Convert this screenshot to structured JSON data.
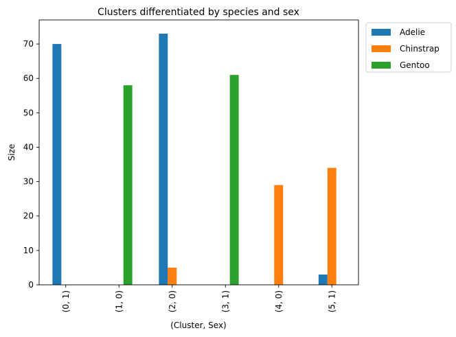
{
  "chart_data": {
    "type": "bar",
    "title": "Clusters differentiated by species and sex",
    "xlabel": "(Cluster, Sex)",
    "ylabel": "Size",
    "categories": [
      "(0, 1)",
      "(1, 0)",
      "(2, 0)",
      "(3, 1)",
      "(4, 0)",
      "(5, 1)"
    ],
    "series": [
      {
        "name": "Adelie",
        "color": "#1f77b4",
        "values": [
          70,
          0,
          73,
          0,
          0,
          3
        ]
      },
      {
        "name": "Chinstrap",
        "color": "#ff7f0e",
        "values": [
          0,
          0,
          5,
          0,
          29,
          34
        ]
      },
      {
        "name": "Gentoo",
        "color": "#2ca02c",
        "values": [
          0,
          58,
          0,
          61,
          0,
          0
        ]
      }
    ],
    "ylim": [
      0,
      77
    ],
    "yticks": [
      0,
      10,
      20,
      30,
      40,
      50,
      60,
      70
    ],
    "grid": false,
    "legend_position": "outside-top-right"
  }
}
